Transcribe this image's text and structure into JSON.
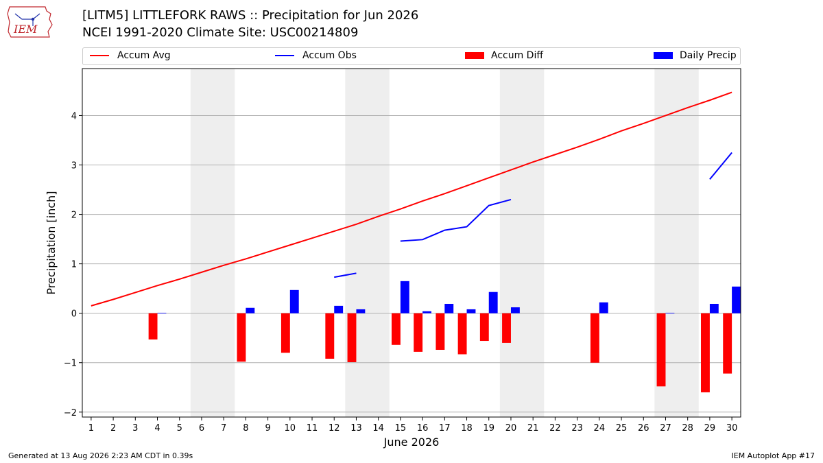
{
  "header": {
    "title_line1": "[LITM5] LITTLEFORK RAWS :: Precipitation for Jun 2026",
    "title_line2": "NCEI 1991-2020 Climate Site: USC00214809",
    "logo_text": "IEM"
  },
  "footer": {
    "left": "Generated at 13 Aug 2026 2:23 AM CDT in 0.39s",
    "right": "IEM Autoplot App #17"
  },
  "colors": {
    "accum_avg": "#ff0000",
    "accum_obs": "#0000ff",
    "accum_diff": "#ff0000",
    "daily_precip": "#0000ff",
    "weekend_shade": "#eeeeee",
    "grid": "#b0b0b0",
    "logo": "#c0272d"
  },
  "chart_data": {
    "type": "bar",
    "xlabel": "June 2026",
    "ylabel": "Precipitation [inch]",
    "ylim": [
      -2.1,
      4.95
    ],
    "xlim": [
      0.6,
      30.4
    ],
    "yticks": [
      -2,
      -1,
      0,
      1,
      2,
      3,
      4
    ],
    "xticks": [
      1,
      2,
      3,
      4,
      5,
      6,
      7,
      8,
      9,
      10,
      11,
      12,
      13,
      14,
      15,
      16,
      17,
      18,
      19,
      20,
      21,
      22,
      23,
      24,
      25,
      26,
      27,
      28,
      29,
      30
    ],
    "grid": "horizontal",
    "legend_position": "top, above plot",
    "weekend_shading": [
      [
        6,
        7
      ],
      [
        13,
        14
      ],
      [
        20,
        21
      ],
      [
        27,
        28
      ]
    ],
    "legend": [
      "Accum Avg",
      "Accum Obs",
      "Accum Diff",
      "Daily Precip"
    ],
    "series": [
      {
        "name": "Accum Avg",
        "kind": "line",
        "x": [
          1,
          2,
          3,
          4,
          5,
          6,
          7,
          8,
          9,
          10,
          11,
          12,
          13,
          14,
          15,
          16,
          17,
          18,
          19,
          20,
          21,
          22,
          23,
          24,
          25,
          26,
          27,
          28,
          29,
          30
        ],
        "values": [
          0.15,
          0.28,
          0.42,
          0.56,
          0.69,
          0.83,
          0.97,
          1.1,
          1.24,
          1.38,
          1.52,
          1.66,
          1.8,
          1.96,
          2.11,
          2.27,
          2.42,
          2.58,
          2.74,
          2.9,
          3.06,
          3.21,
          3.36,
          3.52,
          3.69,
          3.84,
          4.0,
          4.16,
          4.31,
          4.47
        ]
      },
      {
        "name": "Accum Obs",
        "kind": "line",
        "x": [
          1,
          2,
          3,
          4,
          5,
          6,
          7,
          8,
          9,
          10,
          11,
          12,
          13,
          14,
          15,
          16,
          17,
          18,
          19,
          20,
          21,
          22,
          23,
          24,
          25,
          26,
          27,
          28,
          29,
          30
        ],
        "values": [
          null,
          null,
          null,
          null,
          null,
          null,
          null,
          null,
          null,
          null,
          null,
          0.73,
          0.81,
          null,
          1.46,
          1.49,
          1.68,
          1.75,
          2.18,
          2.3,
          null,
          null,
          null,
          null,
          null,
          null,
          null,
          null,
          2.71,
          3.25
        ]
      },
      {
        "name": "Accum Diff",
        "kind": "bar",
        "x": [
          1,
          2,
          3,
          4,
          5,
          6,
          7,
          8,
          9,
          10,
          11,
          12,
          13,
          14,
          15,
          16,
          17,
          18,
          19,
          20,
          21,
          22,
          23,
          24,
          25,
          26,
          27,
          28,
          29,
          30
        ],
        "values": [
          null,
          null,
          null,
          -0.53,
          null,
          null,
          null,
          -0.98,
          null,
          -0.8,
          null,
          -0.92,
          -0.99,
          null,
          -0.64,
          -0.78,
          -0.74,
          -0.83,
          -0.56,
          -0.6,
          null,
          null,
          null,
          -1.0,
          null,
          null,
          -1.48,
          null,
          -1.6,
          -1.22
        ]
      },
      {
        "name": "Daily Precip",
        "kind": "bar",
        "x": [
          1,
          2,
          3,
          4,
          5,
          6,
          7,
          8,
          9,
          10,
          11,
          12,
          13,
          14,
          15,
          16,
          17,
          18,
          19,
          20,
          21,
          22,
          23,
          24,
          25,
          26,
          27,
          28,
          29,
          30
        ],
        "values": [
          null,
          null,
          null,
          0.01,
          null,
          null,
          null,
          0.11,
          null,
          0.47,
          null,
          0.15,
          0.08,
          null,
          0.65,
          0.04,
          0.19,
          0.08,
          0.43,
          0.12,
          null,
          null,
          null,
          0.22,
          null,
          null,
          0.01,
          null,
          0.19,
          0.54
        ]
      }
    ]
  }
}
